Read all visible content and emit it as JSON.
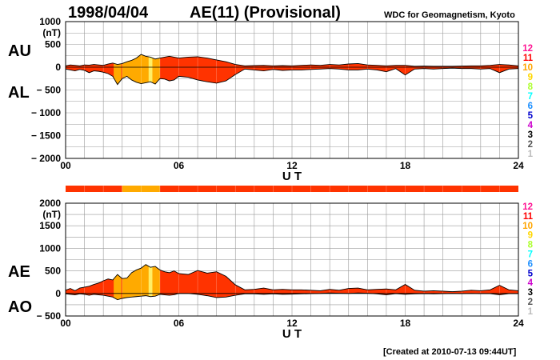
{
  "header": {
    "date": "1998/04/04",
    "title": "AE(11) (Provisional)",
    "source": "WDC for Geomagnetism, Kyoto"
  },
  "footer": {
    "created": "[Created at 2010-07-13 09:44UT]"
  },
  "kp_scale": {
    "labels": [
      "12",
      "11",
      "10",
      "9",
      "8",
      "7",
      "6",
      "5",
      "4",
      "3",
      "2",
      "1"
    ],
    "colors": [
      "#ff1493",
      "#ff0000",
      "#ffa500",
      "#ffd700",
      "#adff2f",
      "#00ffff",
      "#1e90ff",
      "#0000cd",
      "#cc00cc",
      "#000000",
      "#555555",
      "#bbbbbb"
    ]
  },
  "colors": {
    "fill_main": "#ff3300",
    "fill_orange": "#ffaa00",
    "fill_yellow": "#ffee66",
    "outline": "#000000",
    "grid": "#999999"
  },
  "chart_data": [
    {
      "type": "area",
      "title": "AU / AL",
      "left_labels": [
        "AU",
        "AL"
      ],
      "unit": "(nT)",
      "ylim": [
        -2000,
        1000
      ],
      "yticks": [
        1000,
        500,
        0,
        -500,
        -1000,
        -1500,
        -2000
      ],
      "ytick_labels": [
        "1000",
        "500",
        "0",
        "− 500",
        "− 1000",
        "− 1500",
        "− 2000"
      ],
      "xlim": [
        0,
        24
      ],
      "xticks": [
        0,
        6,
        12,
        18,
        24
      ],
      "xtick_labels": [
        "00",
        "06",
        "12",
        "18",
        "24"
      ],
      "xlabel": "U T",
      "grid": true,
      "series": [
        {
          "key": "upper",
          "x": [
            0,
            0.25,
            0.5,
            0.75,
            1,
            1.25,
            1.5,
            1.75,
            2,
            2.25,
            2.5,
            2.75,
            3,
            3.25,
            3.5,
            3.75,
            4,
            4.25,
            4.5,
            4.75,
            5,
            5.25,
            5.5,
            5.75,
            6,
            6.5,
            7,
            7.5,
            8,
            8.5,
            9,
            9.5,
            10,
            10.5,
            11,
            11.5,
            12,
            12.5,
            13,
            13.5,
            14,
            14.5,
            15,
            15.5,
            16,
            16.5,
            17,
            17.5,
            18,
            18.5,
            19,
            19.5,
            20,
            20.5,
            21,
            21.5,
            22,
            22.5,
            23,
            23.5,
            24
          ],
          "values": [
            30,
            50,
            40,
            30,
            50,
            45,
            60,
            50,
            40,
            70,
            90,
            60,
            80,
            120,
            150,
            200,
            280,
            240,
            220,
            180,
            200,
            220,
            240,
            220,
            200,
            220,
            230,
            200,
            160,
            120,
            60,
            30,
            35,
            40,
            30,
            35,
            30,
            40,
            50,
            40,
            60,
            50,
            70,
            80,
            50,
            40,
            30,
            40,
            40,
            20,
            25,
            20,
            20,
            20,
            25,
            30,
            30,
            40,
            60,
            50,
            30
          ]
        },
        {
          "key": "lower",
          "x": [
            0,
            0.25,
            0.5,
            0.75,
            1,
            1.25,
            1.5,
            1.75,
            2,
            2.25,
            2.5,
            2.75,
            3,
            3.25,
            3.5,
            3.75,
            4,
            4.25,
            4.5,
            4.75,
            5,
            5.25,
            5.5,
            5.75,
            6,
            6.5,
            7,
            7.5,
            8,
            8.5,
            9,
            9.5,
            10,
            10.5,
            11,
            11.5,
            12,
            12.5,
            13,
            13.5,
            14,
            14.5,
            15,
            15.5,
            16,
            16.5,
            17,
            17.5,
            18,
            18.5,
            19,
            19.5,
            20,
            20.5,
            21,
            21.5,
            22,
            22.5,
            23,
            23.5,
            24
          ],
          "values": [
            -40,
            -60,
            -80,
            -50,
            -70,
            -120,
            -80,
            -90,
            -110,
            -140,
            -200,
            -380,
            -250,
            -200,
            -280,
            -330,
            -360,
            -340,
            -320,
            -370,
            -250,
            -260,
            -300,
            -280,
            -200,
            -220,
            -280,
            -320,
            -350,
            -300,
            -160,
            -40,
            -60,
            -80,
            -50,
            -70,
            -60,
            -60,
            -50,
            -40,
            -30,
            -40,
            -60,
            -60,
            -40,
            -60,
            -100,
            -30,
            -170,
            -40,
            -30,
            -40,
            -30,
            -20,
            -30,
            -30,
            -40,
            -30,
            -120,
            -40,
            -30
          ]
        }
      ],
      "activity_bands": [
        {
          "from": 2.55,
          "to": 2.95,
          "level": "orange"
        },
        {
          "from": 3.0,
          "to": 5.0,
          "level": "orange"
        },
        {
          "from": 4.4,
          "to": 4.6,
          "level": "yellow"
        }
      ]
    },
    {
      "type": "area",
      "title": "AE / AO",
      "left_labels": [
        "AE",
        "AO"
      ],
      "unit": "(nT)",
      "ylim": [
        -500,
        2000
      ],
      "yticks": [
        2000,
        1500,
        1000,
        500,
        0,
        -500
      ],
      "ytick_labels": [
        "2000",
        "1500",
        "1000",
        "500",
        "0",
        "− 500"
      ],
      "xlim": [
        0,
        24
      ],
      "xticks": [
        0,
        6,
        12,
        18,
        24
      ],
      "xtick_labels": [
        "00",
        "06",
        "12",
        "18",
        "24"
      ],
      "xlabel": "U T",
      "grid": true,
      "series": [
        {
          "key": "upper",
          "x": [
            0,
            0.25,
            0.5,
            0.75,
            1,
            1.25,
            1.5,
            1.75,
            2,
            2.25,
            2.5,
            2.75,
            3,
            3.25,
            3.5,
            3.75,
            4,
            4.25,
            4.5,
            4.75,
            5,
            5.25,
            5.5,
            5.75,
            6,
            6.5,
            7,
            7.5,
            8,
            8.5,
            9,
            9.5,
            10,
            10.5,
            11,
            11.5,
            12,
            12.5,
            13,
            13.5,
            14,
            14.5,
            15,
            15.5,
            16,
            16.5,
            17,
            17.5,
            18,
            18.5,
            19,
            19.5,
            20,
            20.5,
            21,
            21.5,
            22,
            22.5,
            23,
            23.5,
            24
          ],
          "values": [
            70,
            110,
            60,
            120,
            140,
            160,
            200,
            230,
            280,
            320,
            300,
            420,
            330,
            340,
            460,
            520,
            560,
            640,
            580,
            600,
            520,
            480,
            460,
            500,
            440,
            420,
            510,
            450,
            480,
            380,
            190,
            80,
            90,
            120,
            80,
            90,
            80,
            80,
            70,
            60,
            90,
            70,
            110,
            120,
            80,
            90,
            100,
            80,
            200,
            70,
            50,
            60,
            50,
            40,
            50,
            70,
            60,
            80,
            180,
            80,
            60
          ]
        },
        {
          "key": "lower",
          "x": [
            0,
            0.25,
            0.5,
            0.75,
            1,
            1.25,
            1.5,
            1.75,
            2,
            2.25,
            2.5,
            2.75,
            3,
            3.25,
            3.5,
            3.75,
            4,
            4.25,
            4.5,
            4.75,
            5,
            5.25,
            5.5,
            5.75,
            6,
            6.5,
            7,
            7.5,
            8,
            8.5,
            9,
            9.5,
            10,
            10.5,
            11,
            11.5,
            12,
            12.5,
            13,
            13.5,
            14,
            14.5,
            15,
            15.5,
            16,
            16.5,
            17,
            17.5,
            18,
            18.5,
            19,
            19.5,
            20,
            20.5,
            21,
            21.5,
            22,
            22.5,
            23,
            23.5,
            24
          ],
          "values": [
            -10,
            -20,
            -30,
            -10,
            -20,
            -40,
            -20,
            -30,
            -40,
            -60,
            -80,
            -140,
            -110,
            -90,
            -80,
            -70,
            -60,
            -50,
            -70,
            -60,
            -20,
            -30,
            -40,
            -30,
            0,
            0,
            -20,
            -50,
            -90,
            -80,
            -40,
            -10,
            -10,
            -20,
            -10,
            -20,
            -15,
            -10,
            -5,
            0,
            10,
            5,
            0,
            10,
            5,
            -10,
            -30,
            -5,
            -20,
            -10,
            -5,
            -10,
            -5,
            0,
            -5,
            0,
            -5,
            -5,
            -30,
            -5,
            -5
          ]
        }
      ],
      "activity_bands": [
        {
          "from": 2.55,
          "to": 2.95,
          "level": "orange"
        },
        {
          "from": 3.0,
          "to": 5.0,
          "level": "orange"
        },
        {
          "from": 4.4,
          "to": 4.6,
          "level": "yellow"
        }
      ]
    }
  ],
  "status_bar": {
    "segments": [
      {
        "from": 0,
        "to": 3.0,
        "level": "main"
      },
      {
        "from": 3.0,
        "to": 5.0,
        "level": "orange"
      },
      {
        "from": 5.0,
        "to": 24,
        "level": "main"
      }
    ]
  }
}
